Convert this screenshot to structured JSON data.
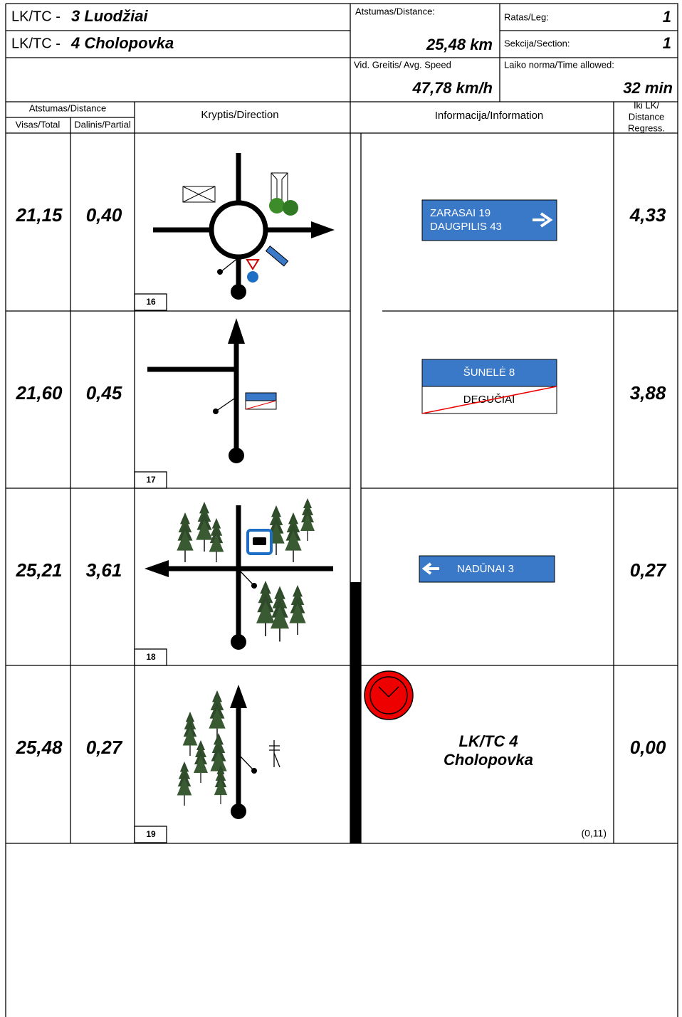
{
  "header": {
    "from_prefix": "LK/TC -",
    "from_name": "3 Luodžiai",
    "to_prefix": "LK/TC -",
    "to_name": "4 Cholopovka",
    "distance_label": "Atstumas/Distance:",
    "distance": "25,48 km",
    "leg_label": "Ratas/Leg:",
    "leg": "1",
    "section_label": "Sekcija/Section:",
    "section": "1",
    "speed_label": "Vid. Greitis/ Avg. Speed",
    "speed": "47,78 km/h",
    "time_label": "Laiko norma/Time allowed:",
    "time": "32 min"
  },
  "columns": {
    "distance": "Atstumas/Distance",
    "total": "Visas/Total",
    "partial": "Dalinis/Partial",
    "direction": "Kryptis/Direction",
    "information": "Informacija/Information",
    "regress": [
      "Iki LK/",
      "Distance",
      "Regress."
    ]
  },
  "rows": [
    {
      "total": "21,15",
      "partial": "0,40",
      "number": "16",
      "regress": "4,33",
      "info": [
        "ZARASAI 19",
        "DAUGPILIS 43"
      ]
    },
    {
      "total": "21,60",
      "partial": "0,45",
      "number": "17",
      "regress": "3,88",
      "info": [
        "ŠUNELĖ 8",
        "DEGUČIAI"
      ]
    },
    {
      "total": "25,21",
      "partial": "3,61",
      "number": "18",
      "regress": "0,27",
      "info": [
        "NADŪNAI 3"
      ]
    },
    {
      "total": "25,48",
      "partial": "0,27",
      "number": "19",
      "regress": "0,00",
      "info": [
        "LK/TC 4",
        "Cholopovka"
      ],
      "note": "(0,11)"
    }
  ]
}
